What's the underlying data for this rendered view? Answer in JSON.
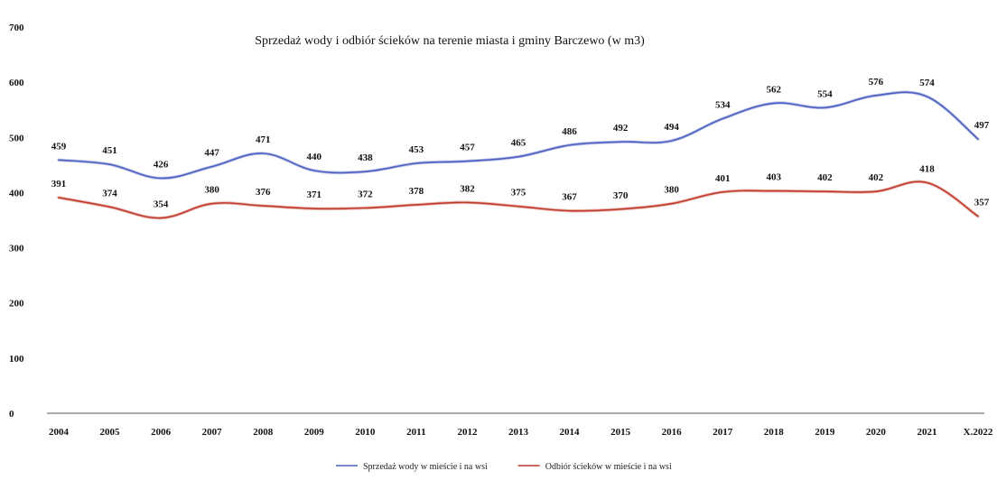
{
  "chart_data": {
    "type": "line",
    "title": "Sprzedaż wody i odbiór ścieków na terenie miasta i gminy Barczewo (w m3)",
    "xlabel": "",
    "ylabel": "",
    "categories": [
      "2004",
      "2005",
      "2006",
      "2007",
      "2008",
      "2009",
      "2010",
      "2011",
      "2012",
      "2013",
      "2014",
      "2015",
      "2016",
      "2017",
      "2018",
      "2019",
      "2020",
      "2021",
      "X.2022"
    ],
    "ylim": [
      0,
      700
    ],
    "yticks": [
      0,
      100,
      200,
      300,
      400,
      500,
      600,
      700
    ],
    "grid": false,
    "legend_position": "bottom",
    "series": [
      {
        "name": "Sprzedaż wody w mieście i na wsi",
        "color": "#4a5fbf",
        "values": [
          459,
          451,
          426,
          447,
          471,
          440,
          438,
          453,
          457,
          465,
          486,
          492,
          494,
          534,
          562,
          554,
          576,
          574,
          497
        ]
      },
      {
        "name": "Odbiór ścieków w mieście i na wsi",
        "color": "#c0392b",
        "values": [
          391,
          374,
          354,
          380,
          376,
          371,
          372,
          378,
          382,
          375,
          367,
          370,
          380,
          401,
          403,
          402,
          402,
          418,
          357
        ]
      }
    ]
  }
}
